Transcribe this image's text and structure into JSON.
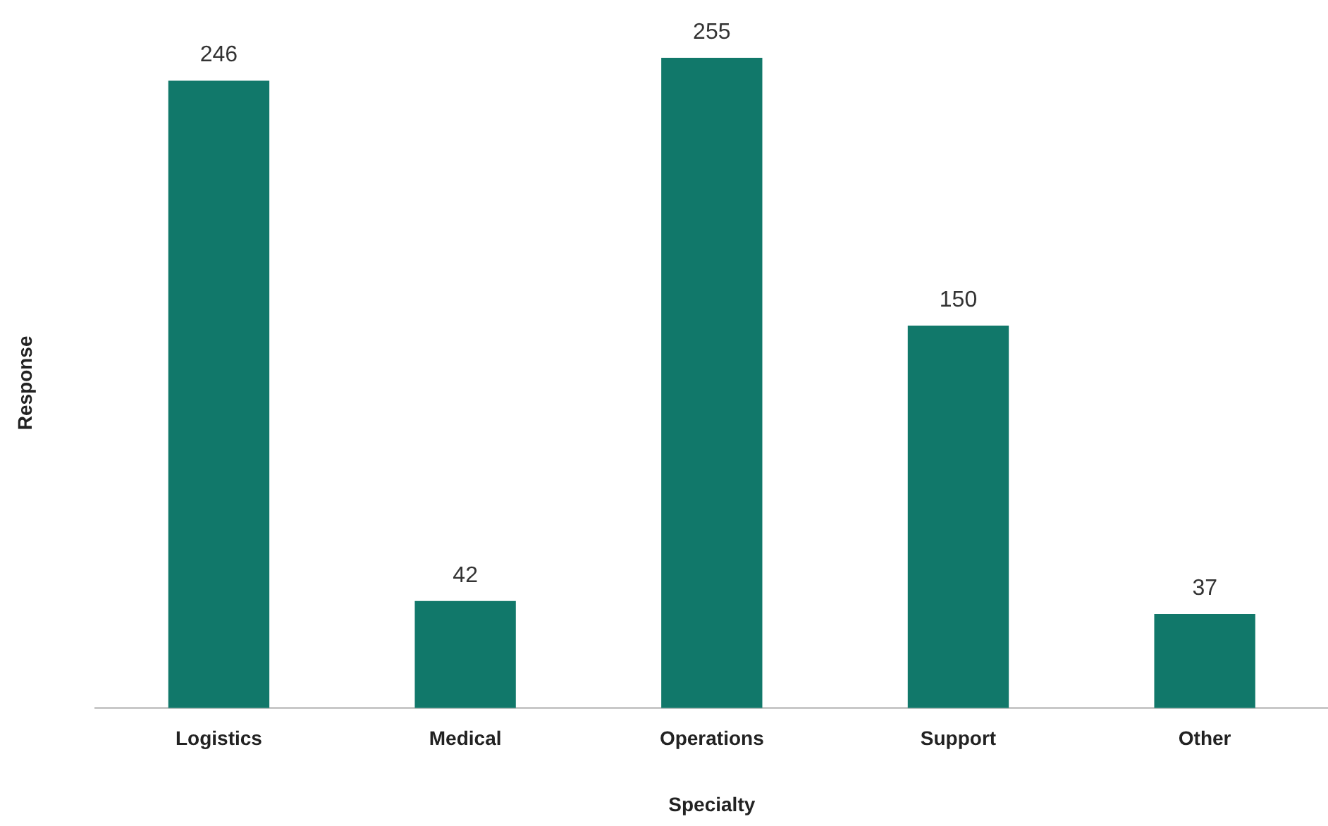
{
  "chart_data": {
    "type": "bar",
    "xlabel": "Specialty",
    "ylabel": "Response",
    "categories": [
      "Logistics",
      "Medical",
      "Operations",
      "Support",
      "Other"
    ],
    "values": [
      246,
      42,
      255,
      150,
      37
    ],
    "color": "#11786a",
    "data_labels": true,
    "tick_labels": "x",
    "grid": false,
    "legend": false
  }
}
